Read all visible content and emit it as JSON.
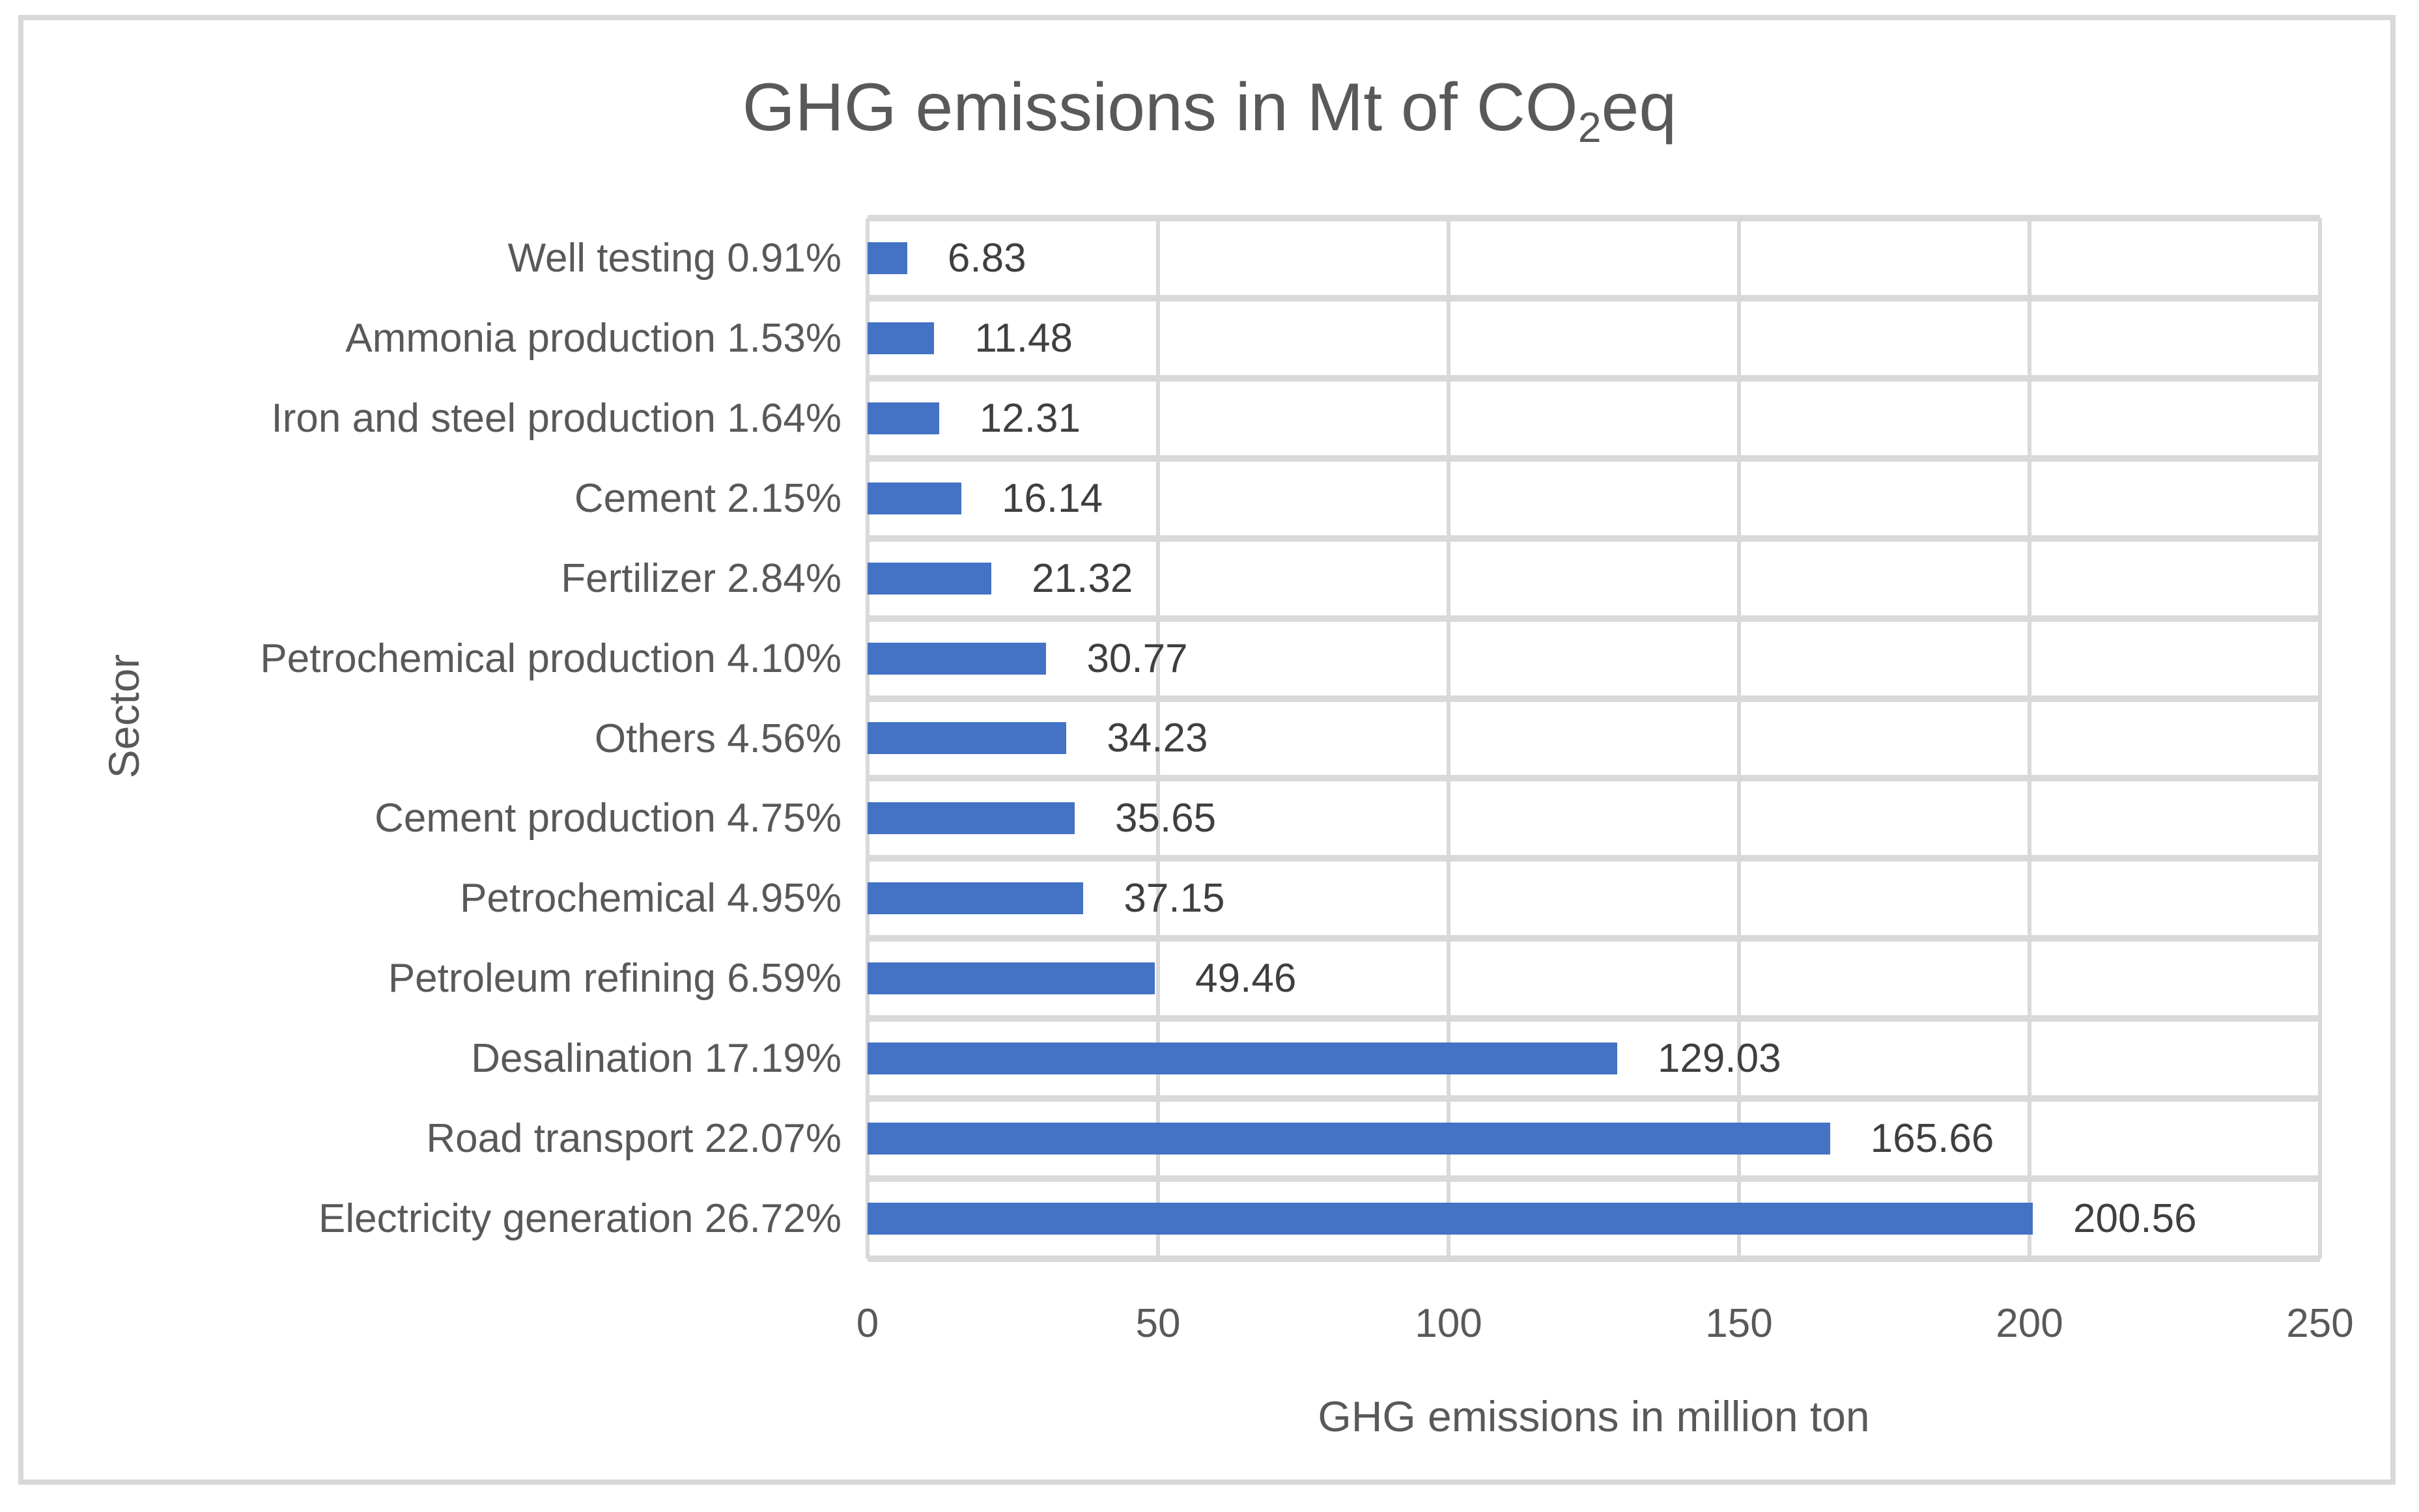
{
  "figure": {
    "title": {
      "pre": "GHG emissions in Mt of CO",
      "sub": "2",
      "post": "eq"
    }
  },
  "chart_data": {
    "type": "bar",
    "orientation": "horizontal",
    "title": "GHG emissions in Mt of CO2eq",
    "xlabel": "GHG emissions in million ton",
    "ylabel": "Sector",
    "xlim": [
      0,
      250
    ],
    "x_ticks": [
      "0",
      "50",
      "100",
      "150",
      "200",
      "250"
    ],
    "x_tick_values": [
      0,
      50,
      100,
      150,
      200,
      250
    ],
    "grid": true,
    "legend": false,
    "bar_color": "#4472C4",
    "gridline_color": "#D9D9D9",
    "axis_text_color": "#595959",
    "data_label_color": "#3F3F3F",
    "categories": [
      "Well testing 0.91%",
      "Ammonia production 1.53%",
      "Iron and steel production 1.64%",
      "Cement 2.15%",
      "Fertilizer 2.84%",
      "Petrochemical production 4.10%",
      "Others 4.56%",
      "Cement production 4.75%",
      "Petrochemical 4.95%",
      "Petroleum refining 6.59%",
      "Desalination 17.19%",
      "Road transport 22.07%",
      "Electricity generation 26.72%"
    ],
    "values": [
      6.83,
      11.48,
      12.31,
      16.14,
      21.32,
      30.77,
      34.23,
      35.65,
      37.15,
      49.46,
      129.03,
      165.66,
      200.56
    ],
    "data_labels": [
      "6.83",
      "11.48",
      "12.31",
      "16.14",
      "21.32",
      "30.77",
      "34.23",
      "35.65",
      "37.15",
      "49.46",
      "129.03",
      "165.66",
      "200.56"
    ]
  }
}
